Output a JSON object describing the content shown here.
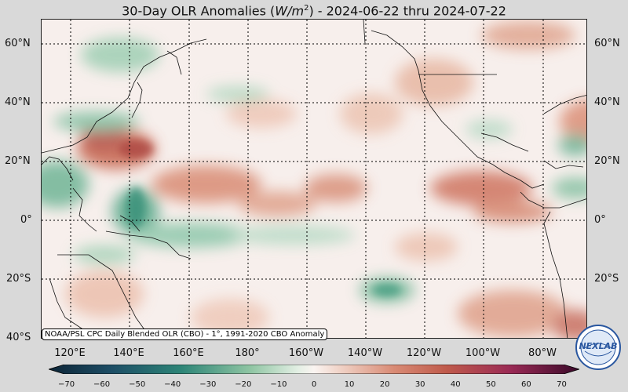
{
  "title": {
    "prefix": "30-Day OLR Anomalies (",
    "unit_base": "W/m",
    "unit_exp": "2",
    "suffix": ") - 2024-06-22 thru 2024-07-22"
  },
  "lat_labels": [
    "60°N",
    "40°N",
    "20°N",
    "0°",
    "20°S",
    "40°S"
  ],
  "lon_labels": [
    "120°E",
    "140°E",
    "160°E",
    "180°",
    "160°W",
    "140°W",
    "120°W",
    "100°W",
    "80°W"
  ],
  "credit": "NOAA/PSL CPC Daily Blended OLR (CBO) - 1°, 1991-2020 CBO Anomaly",
  "colorbar": {
    "ticks": [
      "−70",
      "−60",
      "−50",
      "−40",
      "−30",
      "−20",
      "−10",
      "0",
      "10",
      "20",
      "30",
      "40",
      "50",
      "60",
      "70"
    ],
    "min": -75,
    "max": 75
  },
  "logo_text": "NEXLAB",
  "colors": {
    "neg_strong": "#123a52",
    "neg_mid": "#2e8a78",
    "neg_light": "#a9d2b6",
    "zero": "#f8f2ef",
    "pos_light": "#ecbfaa",
    "pos_mid": "#c86b56",
    "pos_strong": "#8a1a4a"
  }
}
